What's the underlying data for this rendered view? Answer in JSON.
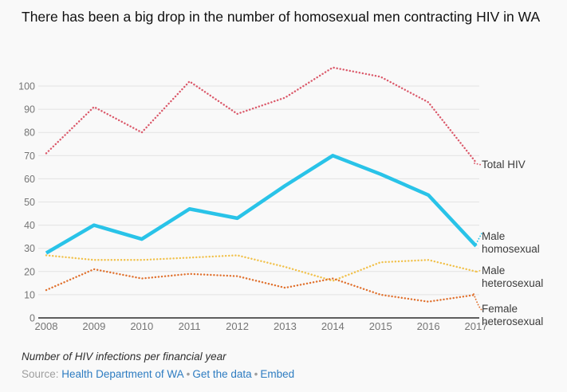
{
  "title": "There has been a big drop in the number of homosexual men contracting HIV in WA",
  "chart_data": {
    "type": "line",
    "x": [
      "2008",
      "2009",
      "2010",
      "2011",
      "2012",
      "2013",
      "2014",
      "2015",
      "2016",
      "2017"
    ],
    "yticks": [
      0,
      10,
      20,
      30,
      40,
      50,
      60,
      70,
      80,
      90,
      100
    ],
    "ylim": [
      0,
      110
    ],
    "grid": "horizontal",
    "legend_position": "right-end-labels",
    "series": [
      {
        "name": "Total HIV",
        "slug": "total-hiv",
        "color": "#db5a6b",
        "style": "dotted",
        "values": [
          71,
          91,
          80,
          102,
          88,
          95,
          108,
          104,
          93,
          67
        ]
      },
      {
        "name": "Male homosexual",
        "slug": "male-homosexual",
        "color": "#29c3e8",
        "style": "solid",
        "values": [
          28,
          40,
          34,
          47,
          43,
          57,
          70,
          62,
          53,
          31
        ]
      },
      {
        "name": "Male heterosexual",
        "slug": "male-heterosexual",
        "color": "#f1c14b",
        "style": "dotted",
        "values": [
          27,
          25,
          25,
          26,
          27,
          22,
          16,
          24,
          25,
          20
        ]
      },
      {
        "name": "Female heterosexual",
        "slug": "female-heterosexual",
        "color": "#e0712e",
        "style": "dotted",
        "values": [
          12,
          21,
          17,
          19,
          18,
          13,
          17,
          10,
          7,
          10
        ]
      }
    ],
    "title": "There has been a big drop in the number of homosexual men contracting HIV in WA",
    "xlabel": "",
    "ylabel": ""
  },
  "footnote": "Number of HIV infections per financial year",
  "source": {
    "label": "Source:",
    "links": [
      "Health Department of WA",
      "Get the data",
      "Embed"
    ],
    "separator": "•"
  },
  "colors": {
    "background": "#f9f9f9",
    "grid": "#e3e3e3",
    "axis": "#2b2b2b",
    "tick_text": "#757575",
    "label_text": "#3c3c3c",
    "link": "#2d7cc1",
    "source_text": "#9e9e9e"
  }
}
